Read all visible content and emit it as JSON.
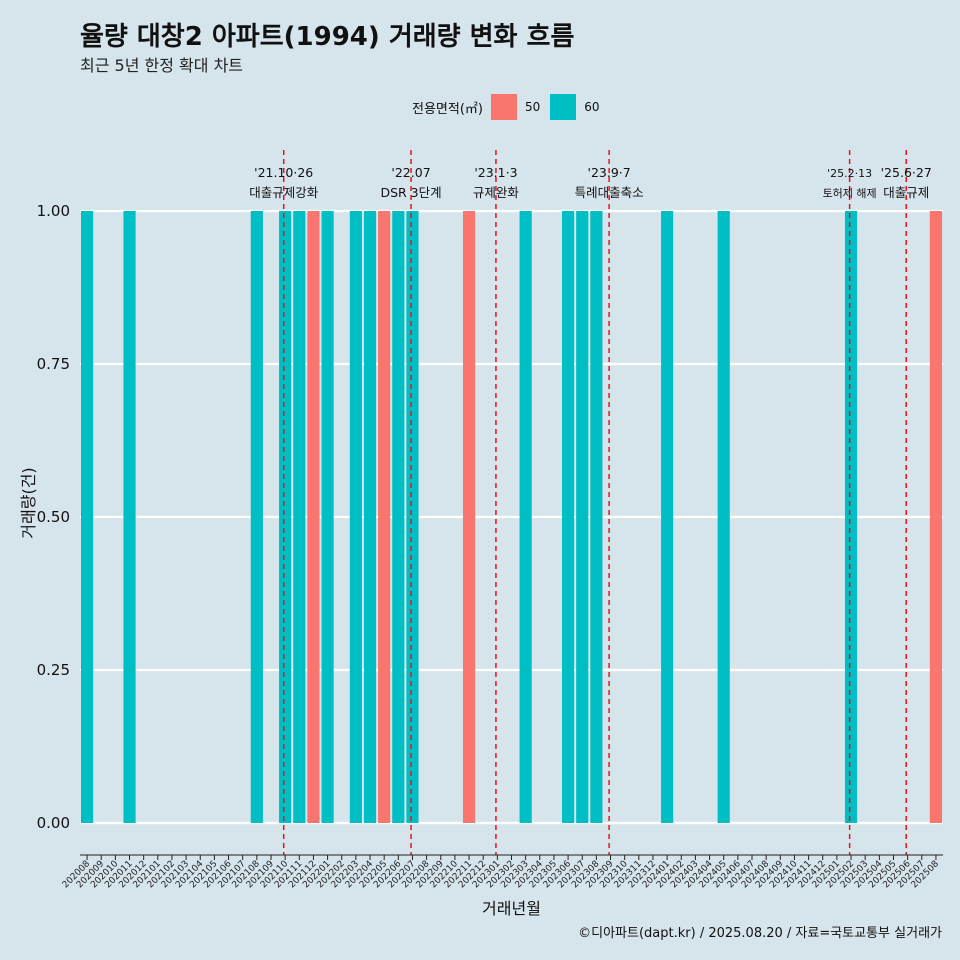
{
  "title": "율량 대창2 아파트(1994) 거래량 변화 흐름",
  "subtitle": "최근 5년 한정 확대 차트",
  "caption": "©디아파트(dapt.kr) / 2025.08.20 / 자료=국토교통부 실거래가",
  "legend": {
    "title": "전용면적(㎡)",
    "items": [
      {
        "label": "50",
        "color": "#f8766d"
      },
      {
        "label": "60",
        "color": "#00bfc4"
      }
    ]
  },
  "chart_data": {
    "type": "bar",
    "xlabel": "거래년월",
    "ylabel": "거래량(건)",
    "ylim": [
      0,
      1
    ],
    "yticks": [
      "0.00",
      "0.25",
      "0.50",
      "0.75",
      "1.00"
    ],
    "grid": true,
    "legend_position": "top",
    "categories": [
      "202008",
      "202009",
      "202010",
      "202011",
      "202012",
      "202101",
      "202102",
      "202103",
      "202104",
      "202105",
      "202106",
      "202107",
      "202108",
      "202109",
      "202110",
      "202111",
      "202112",
      "202201",
      "202202",
      "202203",
      "202204",
      "202205",
      "202206",
      "202207",
      "202208",
      "202209",
      "202210",
      "202211",
      "202212",
      "202301",
      "202302",
      "202303",
      "202304",
      "202305",
      "202306",
      "202307",
      "202308",
      "202309",
      "202310",
      "202311",
      "202312",
      "202401",
      "202402",
      "202403",
      "202404",
      "202405",
      "202406",
      "202407",
      "202408",
      "202409",
      "202410",
      "202411",
      "202412",
      "202501",
      "202502",
      "202503",
      "202504",
      "202505",
      "202506",
      "202507",
      "202508"
    ],
    "series": [
      {
        "name": "50",
        "color": "#f8766d",
        "values": [
          0,
          0,
          0,
          0,
          0,
          0,
          0,
          0,
          0,
          0,
          0,
          0,
          0,
          0,
          0,
          0,
          1,
          0,
          0,
          0,
          0,
          1,
          0,
          0,
          0,
          0,
          0,
          1,
          0,
          0,
          0,
          0,
          0,
          0,
          0,
          0,
          0,
          0,
          0,
          0,
          0,
          0,
          0,
          0,
          0,
          0,
          0,
          0,
          0,
          0,
          0,
          0,
          0,
          0,
          0,
          0,
          0,
          0,
          0,
          0,
          1
        ]
      },
      {
        "name": "60",
        "color": "#00bfc4",
        "values": [
          1,
          0,
          0,
          1,
          0,
          0,
          0,
          0,
          0,
          0,
          0,
          0,
          1,
          0,
          1,
          1,
          0,
          1,
          0,
          1,
          1,
          0,
          1,
          1,
          0,
          0,
          0,
          0,
          0,
          0,
          0,
          1,
          0,
          0,
          1,
          1,
          1,
          0,
          0,
          0,
          0,
          1,
          0,
          0,
          0,
          1,
          0,
          0,
          0,
          0,
          0,
          0,
          0,
          0,
          1,
          0,
          0,
          0,
          0,
          0,
          0
        ]
      }
    ],
    "events": [
      {
        "date": "2021-10-26",
        "position": 14.4,
        "date_label": "'21.10·26",
        "label": "대출규제강화"
      },
      {
        "date": "2022-07",
        "position": 23.4,
        "date_label": "'22.07",
        "label": "DSR 3단계"
      },
      {
        "date": "2023-01-03",
        "position": 29.4,
        "date_label": "'23.1·3",
        "label": "규제완화"
      },
      {
        "date": "2023-09-07",
        "position": 37.4,
        "date_label": "'23.9·7",
        "label": "특례대출축소"
      },
      {
        "date": "2025-02-13",
        "position": 54.4,
        "date_label": "'25.2·13",
        "label": "토허제 해제"
      },
      {
        "date": "2025-06-27",
        "position": 58.4,
        "date_label": "'25.6·27",
        "label": "대출규제"
      }
    ]
  }
}
